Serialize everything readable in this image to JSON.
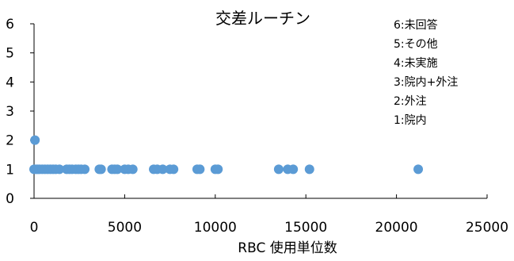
{
  "chart_data": {
    "type": "scatter",
    "title": "交差ルーチン",
    "xlabel": "RBC 使用単位数",
    "ylabel": "",
    "xlim": [
      0,
      25000
    ],
    "ylim": [
      0,
      6
    ],
    "x_ticks": [
      0,
      5000,
      10000,
      15000,
      20000,
      25000
    ],
    "y_ticks": [
      0,
      1,
      2,
      3,
      4,
      5,
      6
    ],
    "grid": false,
    "legend_position": "top-right",
    "legend": [
      "6:未回答",
      "5:その他",
      "4:未実施",
      "3:院内+外注",
      "2:外注",
      "1:院内"
    ],
    "marker_color": "#5B9BD5",
    "series": [
      {
        "points": [
          {
            "x": 50,
            "y": 2
          },
          {
            "x": 0,
            "y": 1
          },
          {
            "x": 100,
            "y": 1
          },
          {
            "x": 200,
            "y": 1
          },
          {
            "x": 300,
            "y": 1
          },
          {
            "x": 450,
            "y": 1
          },
          {
            "x": 600,
            "y": 1
          },
          {
            "x": 750,
            "y": 1
          },
          {
            "x": 900,
            "y": 1
          },
          {
            "x": 1050,
            "y": 1
          },
          {
            "x": 1200,
            "y": 1
          },
          {
            "x": 1400,
            "y": 1
          },
          {
            "x": 1800,
            "y": 1
          },
          {
            "x": 1950,
            "y": 1
          },
          {
            "x": 2100,
            "y": 1
          },
          {
            "x": 2300,
            "y": 1
          },
          {
            "x": 2450,
            "y": 1
          },
          {
            "x": 2600,
            "y": 1
          },
          {
            "x": 2800,
            "y": 1
          },
          {
            "x": 3600,
            "y": 1
          },
          {
            "x": 3700,
            "y": 1
          },
          {
            "x": 4300,
            "y": 1
          },
          {
            "x": 4450,
            "y": 1
          },
          {
            "x": 4600,
            "y": 1
          },
          {
            "x": 5000,
            "y": 1
          },
          {
            "x": 5200,
            "y": 1
          },
          {
            "x": 5450,
            "y": 1
          },
          {
            "x": 6600,
            "y": 1
          },
          {
            "x": 6800,
            "y": 1
          },
          {
            "x": 7100,
            "y": 1
          },
          {
            "x": 7500,
            "y": 1
          },
          {
            "x": 7700,
            "y": 1
          },
          {
            "x": 9000,
            "y": 1
          },
          {
            "x": 9150,
            "y": 1
          },
          {
            "x": 10000,
            "y": 1
          },
          {
            "x": 10150,
            "y": 1
          },
          {
            "x": 13500,
            "y": 1
          },
          {
            "x": 14000,
            "y": 1
          },
          {
            "x": 14300,
            "y": 1
          },
          {
            "x": 15200,
            "y": 1
          },
          {
            "x": 21200,
            "y": 1
          }
        ]
      }
    ]
  }
}
